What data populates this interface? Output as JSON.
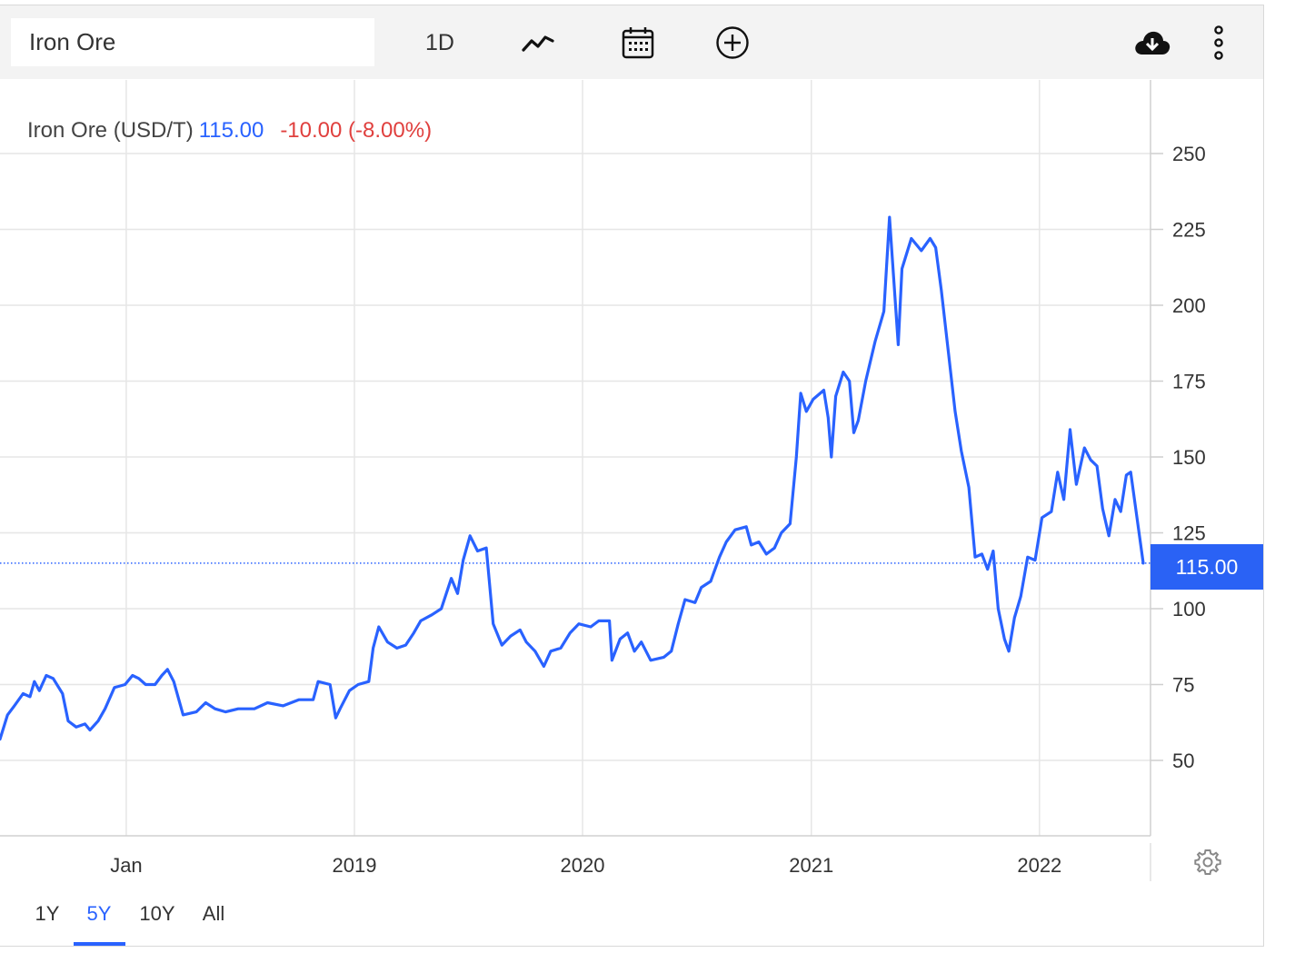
{
  "toolbar": {
    "search_value": "Iron Ore",
    "interval_label": "1D",
    "icons": [
      "line-chart-icon",
      "calendar-icon",
      "add-circle-icon",
      "cloud-download-icon",
      "more-vertical-icon"
    ]
  },
  "legend": {
    "name": "Iron Ore (USD/T)",
    "price": "115.00",
    "change": "-10.00 (-8.00%)"
  },
  "price_tag": "115.00",
  "ranges": [
    "1Y",
    "5Y",
    "10Y",
    "All"
  ],
  "active_range": "5Y",
  "colors": {
    "line": "#2962ff",
    "negative": "#e0403e",
    "tag": "#2a62f5"
  },
  "chart_data": {
    "type": "line",
    "title": "",
    "xlabel": "",
    "ylabel": "",
    "x_ticks": [
      "Jan",
      "2019",
      "2020",
      "2021",
      "2022"
    ],
    "x_tick_dates": [
      "2018-01-01",
      "2019-01-01",
      "2020-01-01",
      "2021-01-01",
      "2022-01-01"
    ],
    "xlim": [
      "2017-06-13",
      "2022-06-16"
    ],
    "y_ticks": [
      50,
      75,
      100,
      125,
      150,
      175,
      200,
      225,
      250
    ],
    "ylim": [
      25,
      275
    ],
    "grid": true,
    "last_value": 115.0,
    "series": [
      {
        "name": "Iron Ore (USD/T)",
        "points": [
          [
            "2017-06-13",
            57
          ],
          [
            "2017-06-25",
            65
          ],
          [
            "2017-07-06",
            68
          ],
          [
            "2017-07-20",
            72
          ],
          [
            "2017-07-31",
            71
          ],
          [
            "2017-08-07",
            76
          ],
          [
            "2017-08-15",
            73
          ],
          [
            "2017-08-26",
            78
          ],
          [
            "2017-09-06",
            77
          ],
          [
            "2017-09-21",
            72
          ],
          [
            "2017-09-30",
            63
          ],
          [
            "2017-10-13",
            61
          ],
          [
            "2017-10-27",
            62
          ],
          [
            "2017-11-04",
            60
          ],
          [
            "2017-11-17",
            63
          ],
          [
            "2017-11-28",
            67
          ],
          [
            "2017-12-13",
            74
          ],
          [
            "2017-12-30",
            75
          ],
          [
            "2018-01-11",
            78
          ],
          [
            "2018-01-21",
            77
          ],
          [
            "2018-02-01",
            75
          ],
          [
            "2018-02-16",
            75
          ],
          [
            "2018-02-27",
            78
          ],
          [
            "2018-03-08",
            80
          ],
          [
            "2018-03-18",
            76
          ],
          [
            "2018-04-02",
            65
          ],
          [
            "2018-04-23",
            66
          ],
          [
            "2018-05-08",
            69
          ],
          [
            "2018-05-23",
            67
          ],
          [
            "2018-06-09",
            66
          ],
          [
            "2018-06-29",
            67
          ],
          [
            "2018-07-25",
            67
          ],
          [
            "2018-08-15",
            69
          ],
          [
            "2018-09-09",
            68
          ],
          [
            "2018-10-04",
            70
          ],
          [
            "2018-10-27",
            70
          ],
          [
            "2018-11-04",
            76
          ],
          [
            "2018-11-23",
            75
          ],
          [
            "2018-12-02",
            64
          ],
          [
            "2018-12-09",
            67
          ],
          [
            "2018-12-24",
            73
          ],
          [
            "2019-01-07",
            75
          ],
          [
            "2019-01-24",
            76
          ],
          [
            "2019-01-31",
            87
          ],
          [
            "2019-02-09",
            94
          ],
          [
            "2019-02-23",
            89
          ],
          [
            "2019-03-10",
            87
          ],
          [
            "2019-03-24",
            88
          ],
          [
            "2019-04-06",
            92
          ],
          [
            "2019-04-17",
            96
          ],
          [
            "2019-05-05",
            98
          ],
          [
            "2019-05-20",
            100
          ],
          [
            "2019-06-05",
            110
          ],
          [
            "2019-06-15",
            105
          ],
          [
            "2019-06-24",
            116
          ],
          [
            "2019-07-05",
            124
          ],
          [
            "2019-07-17",
            119
          ],
          [
            "2019-07-31",
            120
          ],
          [
            "2019-08-11",
            95
          ],
          [
            "2019-08-25",
            88
          ],
          [
            "2019-09-08",
            91
          ],
          [
            "2019-09-23",
            93
          ],
          [
            "2019-10-03",
            89
          ],
          [
            "2019-10-17",
            86
          ],
          [
            "2019-10-31",
            81
          ],
          [
            "2019-11-11",
            86
          ],
          [
            "2019-11-27",
            87
          ],
          [
            "2019-12-12",
            92
          ],
          [
            "2019-12-26",
            95
          ],
          [
            "2020-01-14",
            94
          ],
          [
            "2020-01-27",
            96
          ],
          [
            "2020-02-13",
            96
          ],
          [
            "2020-02-17",
            83
          ],
          [
            "2020-03-01",
            90
          ],
          [
            "2020-03-13",
            92
          ],
          [
            "2020-03-24",
            86
          ],
          [
            "2020-04-04",
            89
          ],
          [
            "2020-04-19",
            83
          ],
          [
            "2020-05-10",
            84
          ],
          [
            "2020-05-22",
            86
          ],
          [
            "2020-06-02",
            95
          ],
          [
            "2020-06-13",
            103
          ],
          [
            "2020-06-29",
            102
          ],
          [
            "2020-07-09",
            107
          ],
          [
            "2020-07-24",
            109
          ],
          [
            "2020-08-07",
            117
          ],
          [
            "2020-08-18",
            122
          ],
          [
            "2020-09-01",
            126
          ],
          [
            "2020-09-19",
            127
          ],
          [
            "2020-09-27",
            121
          ],
          [
            "2020-10-09",
            122
          ],
          [
            "2020-10-21",
            118
          ],
          [
            "2020-11-03",
            120
          ],
          [
            "2020-11-14",
            125
          ],
          [
            "2020-11-28",
            128
          ],
          [
            "2020-12-08",
            150
          ],
          [
            "2020-12-15",
            171
          ],
          [
            "2020-12-24",
            165
          ],
          [
            "2021-01-04",
            169
          ],
          [
            "2021-01-21",
            172
          ],
          [
            "2021-01-28",
            163
          ],
          [
            "2021-02-02",
            150
          ],
          [
            "2021-02-09",
            170
          ],
          [
            "2021-02-21",
            178
          ],
          [
            "2021-03-03",
            175
          ],
          [
            "2021-03-10",
            158
          ],
          [
            "2021-03-17",
            162
          ],
          [
            "2021-03-29",
            175
          ],
          [
            "2021-04-13",
            188
          ],
          [
            "2021-04-27",
            198
          ],
          [
            "2021-05-06",
            229
          ],
          [
            "2021-05-13",
            208
          ],
          [
            "2021-05-20",
            187
          ],
          [
            "2021-05-26",
            212
          ],
          [
            "2021-06-10",
            222
          ],
          [
            "2021-06-26",
            218
          ],
          [
            "2021-07-10",
            222
          ],
          [
            "2021-07-19",
            219
          ],
          [
            "2021-07-28",
            205
          ],
          [
            "2021-08-08",
            185
          ],
          [
            "2021-08-19",
            165
          ],
          [
            "2021-08-29",
            152
          ],
          [
            "2021-09-10",
            140
          ],
          [
            "2021-09-20",
            117
          ],
          [
            "2021-10-01",
            118
          ],
          [
            "2021-10-10",
            113
          ],
          [
            "2021-10-19",
            119
          ],
          [
            "2021-10-27",
            100
          ],
          [
            "2021-11-06",
            90
          ],
          [
            "2021-11-13",
            86
          ],
          [
            "2021-11-22",
            97
          ],
          [
            "2021-12-02",
            104
          ],
          [
            "2021-12-13",
            117
          ],
          [
            "2021-12-25",
            116
          ],
          [
            "2022-01-05",
            130
          ],
          [
            "2022-01-20",
            132
          ],
          [
            "2022-01-30",
            145
          ],
          [
            "2022-02-09",
            136
          ],
          [
            "2022-02-19",
            159
          ],
          [
            "2022-02-29",
            141
          ],
          [
            "2022-03-14",
            153
          ],
          [
            "2022-03-24",
            149
          ],
          [
            "2022-04-03",
            147
          ],
          [
            "2022-04-12",
            133
          ],
          [
            "2022-04-22",
            124
          ],
          [
            "2022-05-02",
            136
          ],
          [
            "2022-05-11",
            132
          ],
          [
            "2022-05-20",
            144
          ],
          [
            "2022-05-27",
            145
          ],
          [
            "2022-06-06",
            130
          ],
          [
            "2022-06-16",
            115
          ]
        ]
      }
    ]
  }
}
